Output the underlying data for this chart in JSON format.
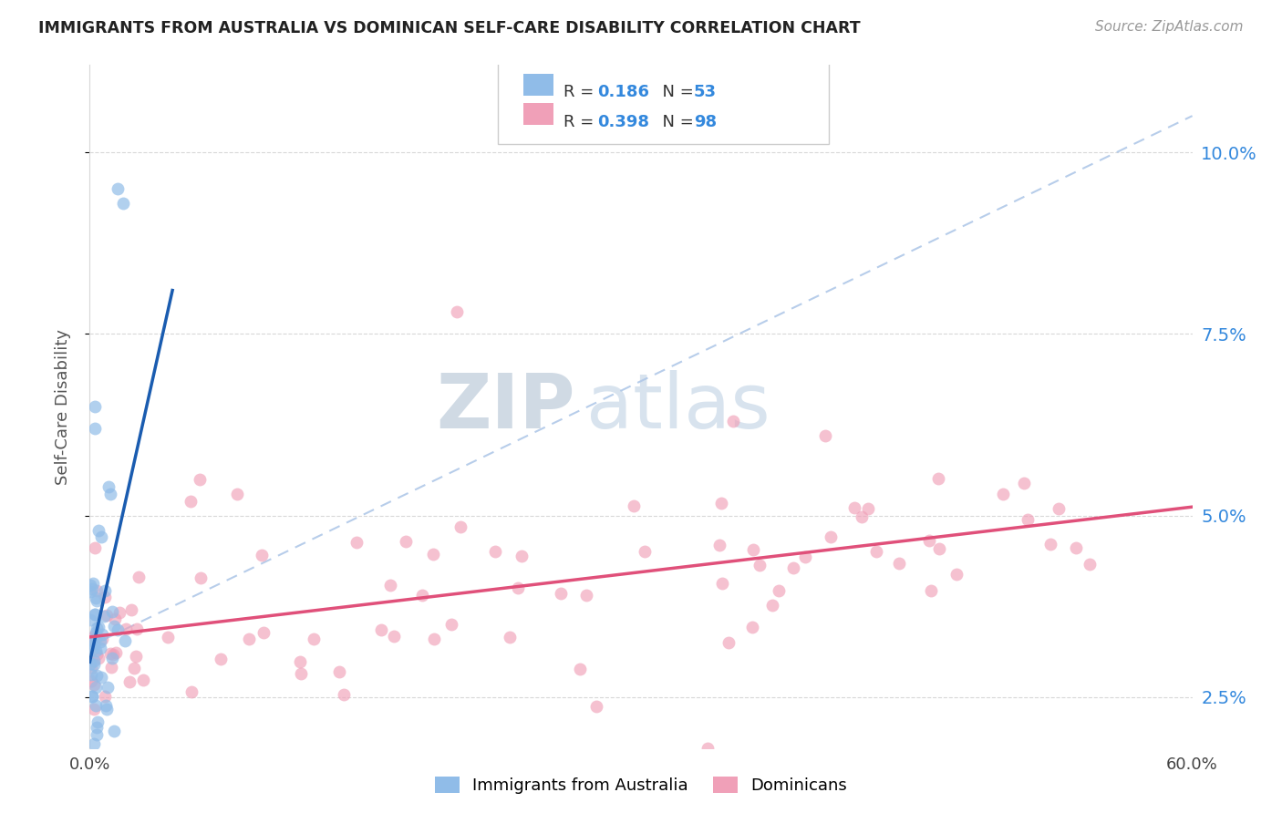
{
  "title": "IMMIGRANTS FROM AUSTRALIA VS DOMINICAN SELF-CARE DISABILITY CORRELATION CHART",
  "source": "Source: ZipAtlas.com",
  "ylabel": "Self-Care Disability",
  "australia_color": "#90bce8",
  "dominican_color": "#f0a0b8",
  "trend_australia_color": "#1a5cb0",
  "trend_dominican_color": "#e0507a",
  "diag_color": "#b0c8e8",
  "watermark_zip": "ZIP",
  "watermark_atlas": "atlas",
  "background_color": "#ffffff",
  "grid_color": "#d8d8d8",
  "xlim": [
    0,
    60
  ],
  "ylim": [
    1.8,
    11.2
  ],
  "yticks": [
    2.5,
    5.0,
    7.5,
    10.0
  ],
  "yticklabels": [
    "2.5%",
    "5.0%",
    "7.5%",
    "10.0%"
  ],
  "xtick_left": "0.0%",
  "xtick_right": "60.0%",
  "legend_color_num": "#3388dd",
  "legend_R1": "0.186",
  "legend_N1": "53",
  "legend_R2": "0.398",
  "legend_N2": "98",
  "figsize": [
    14.06,
    8.92
  ],
  "dpi": 100,
  "marker_size": 100
}
